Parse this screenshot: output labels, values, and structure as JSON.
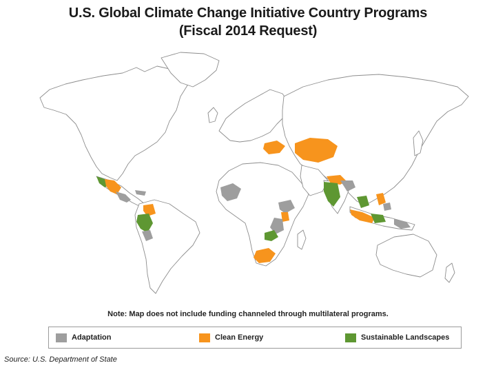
{
  "title": {
    "line1": "U.S. Global Climate Change Initiative Country Programs",
    "line2": "(Fiscal 2014 Request)"
  },
  "note": "Note: Map does not include funding channeled through multilateral programs.",
  "legend": {
    "items": [
      {
        "label": "Adaptation",
        "color": "#9e9e9e"
      },
      {
        "label": "Clean Energy",
        "color": "#f7941d"
      },
      {
        "label": "Sustainable Landscapes",
        "color": "#5e9732"
      }
    ]
  },
  "source": "Source: U.S. Department of State",
  "colors": {
    "adaptation": "#9e9e9e",
    "clean_energy": "#f7941d",
    "sustainable_landscapes": "#5e9732",
    "land": "#ffffff",
    "border": "#8c8c8c"
  }
}
